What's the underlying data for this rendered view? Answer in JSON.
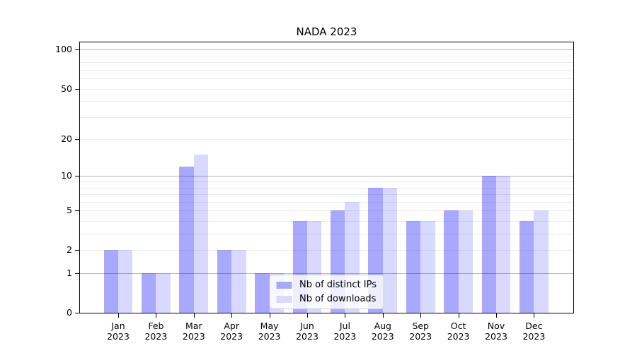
{
  "chart_data": {
    "type": "bar",
    "title": "NADA 2023",
    "categories": [
      {
        "month": "Jan",
        "year": "2023"
      },
      {
        "month": "Feb",
        "year": "2023"
      },
      {
        "month": "Mar",
        "year": "2023"
      },
      {
        "month": "Apr",
        "year": "2023"
      },
      {
        "month": "May",
        "year": "2023"
      },
      {
        "month": "Jun",
        "year": "2023"
      },
      {
        "month": "Jul",
        "year": "2023"
      },
      {
        "month": "Aug",
        "year": "2023"
      },
      {
        "month": "Sep",
        "year": "2023"
      },
      {
        "month": "Oct",
        "year": "2023"
      },
      {
        "month": "Nov",
        "year": "2023"
      },
      {
        "month": "Dec",
        "year": "2023"
      }
    ],
    "series": [
      {
        "name": "Nb of distinct IPs",
        "values": [
          2,
          1,
          12,
          2,
          1,
          4,
          5,
          8,
          4,
          5,
          10,
          4
        ],
        "color": "rgba(0,0,255,0.34)",
        "legend_color": "#a9a9fa"
      },
      {
        "name": "Nb of downloads",
        "values": [
          2,
          1,
          15,
          2,
          1,
          4,
          6,
          8,
          4,
          5,
          10,
          5
        ],
        "color": "rgba(0,0,255,0.15)",
        "legend_color": "#d9d9fb"
      }
    ],
    "y_axis": {
      "scale": "log1p",
      "tick_labels": [
        "0",
        "1",
        "2",
        "5",
        "10",
        "20",
        "50",
        "100"
      ],
      "tick_values": [
        0,
        1,
        2,
        5,
        10,
        20,
        50,
        100
      ],
      "major_gridlines": [
        1,
        10,
        100
      ],
      "minor_gridlines": [
        2,
        3,
        4,
        5,
        6,
        7,
        8,
        9,
        20,
        30,
        40,
        50,
        60,
        70,
        80,
        90
      ],
      "ylim": [
        0,
        114
      ]
    },
    "legend": {
      "position": "lower center"
    },
    "grid": true,
    "style": {
      "grid_major_color": "#b5b5b5",
      "grid_minor_color": "#ebebeb",
      "axis_color": "#000000",
      "text_color": "#000000",
      "background": "#ffffff"
    }
  }
}
